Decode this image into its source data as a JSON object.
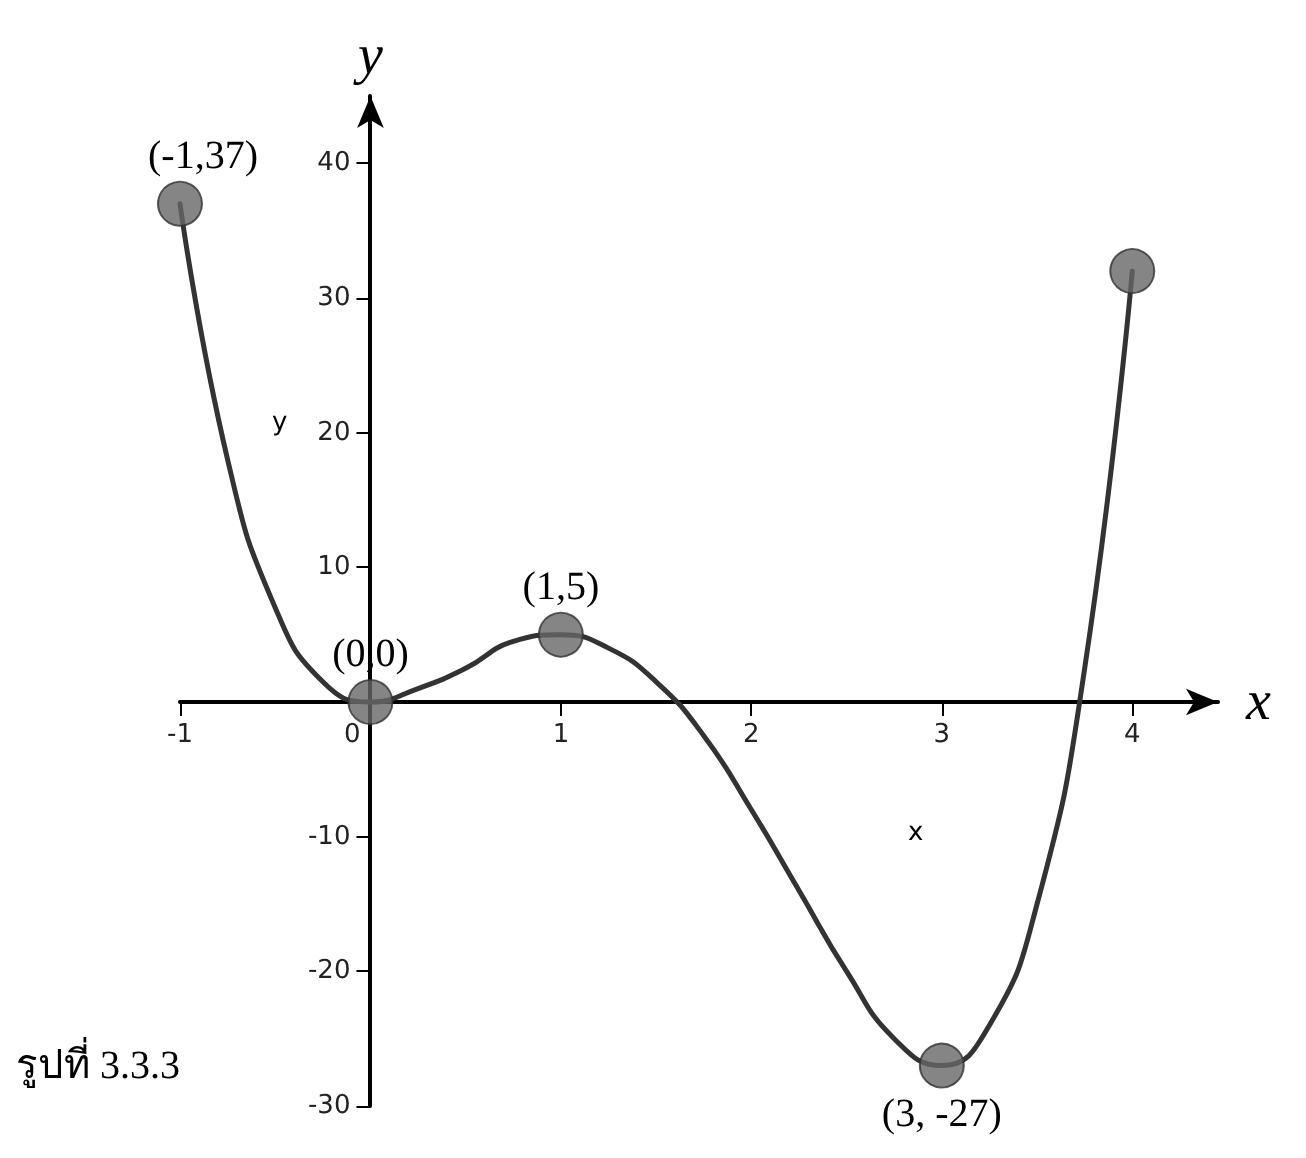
{
  "chart_data": {
    "type": "line",
    "xlabel": "x",
    "ylabel": "y",
    "xlim": [
      -1,
      4.45
    ],
    "ylim": [
      -30,
      45
    ],
    "xticks": [
      -1,
      0,
      1,
      2,
      3,
      4
    ],
    "yticks": [
      -30,
      -20,
      -10,
      10,
      20,
      30,
      40
    ],
    "grid": false,
    "series": [
      {
        "type": "line",
        "color": "#333333",
        "line_style": "solid",
        "marker": "none",
        "x": [
          -1,
          -0.75,
          -0.5,
          -0.25,
          0,
          0.25,
          0.5,
          0.75,
          1,
          1.25,
          1.5,
          1.75,
          2,
          2.25,
          2.5,
          2.75,
          3,
          3.25,
          3.5,
          3.75,
          4
        ],
        "values": [
          37,
          18,
          7,
          1.5,
          0,
          1,
          2.5,
          4.5,
          5,
          4,
          1.5,
          -2.5,
          -8,
          -14,
          -20,
          -25,
          -27,
          -24,
          -15,
          2.5,
          32
        ]
      },
      {
        "type": "scatter",
        "color": "#666666",
        "marker": "circle",
        "x": [
          -1,
          0,
          1,
          3,
          4
        ],
        "values": [
          37,
          0,
          5,
          -27,
          32
        ]
      }
    ],
    "annotations": [
      {
        "text": "(-1,37)",
        "x": -1,
        "y": 37
      },
      {
        "text": "(0,0)",
        "x": 0,
        "y": 0
      },
      {
        "text": "(1,5)",
        "x": 1,
        "y": 5
      },
      {
        "text": "(3, -27)",
        "x": 3,
        "y": -27
      },
      "รูปที่ 3.3.3",
      "y",
      "x"
    ]
  }
}
